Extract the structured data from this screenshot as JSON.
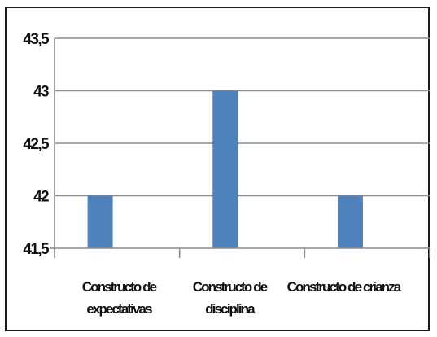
{
  "chart_data": {
    "type": "bar",
    "categories": [
      [
        "Constructo de",
        "expectativas"
      ],
      [
        "Constructo de",
        "disciplina"
      ],
      [
        "Constructo de crianza"
      ]
    ],
    "values": [
      42,
      43,
      42
    ],
    "ylim": [
      41.5,
      43.5
    ],
    "yticks": [
      {
        "value": 41.5,
        "label": "41,5"
      },
      {
        "value": 42,
        "label": "42"
      },
      {
        "value": 42.5,
        "label": "42,5"
      },
      {
        "value": 43,
        "label": "43"
      },
      {
        "value": 43.5,
        "label": "43,5"
      }
    ],
    "bar_color": "#4f81bd",
    "grid": true,
    "legend": "none"
  }
}
